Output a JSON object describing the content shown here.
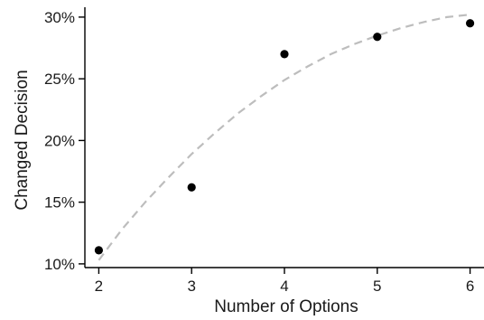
{
  "chart_data": {
    "type": "scatter",
    "x": [
      2,
      3,
      4,
      5,
      6
    ],
    "y": [
      11.1,
      16.2,
      27.0,
      28.4,
      29.5
    ],
    "trendline": {
      "style": "dashed",
      "color": "#bdbdbd",
      "x": [
        2.0,
        2.25,
        2.5,
        2.75,
        3.0,
        3.25,
        3.5,
        3.75,
        4.0,
        4.25,
        4.5,
        4.75,
        5.0,
        5.25,
        5.5,
        5.75,
        6.0
      ],
      "y": [
        10.3,
        12.8,
        15.0,
        17.0,
        18.9,
        20.6,
        22.2,
        23.6,
        24.9,
        26.0,
        27.0,
        27.8,
        28.5,
        29.1,
        29.6,
        30.0,
        30.2
      ]
    },
    "xlabel": "Number of Options",
    "ylabel": "Changed Decision",
    "xlim": [
      1.85,
      6.15
    ],
    "ylim": [
      9.7,
      30.8
    ],
    "xticks": [
      2,
      3,
      4,
      5,
      6
    ],
    "xtick_labels": [
      "2",
      "3",
      "4",
      "5",
      "6"
    ],
    "yticks": [
      10,
      15,
      20,
      25,
      30
    ],
    "ytick_labels": [
      "10%",
      "15%",
      "20%",
      "25%",
      "30%"
    ],
    "point_color": "#000000",
    "grid": false
  }
}
